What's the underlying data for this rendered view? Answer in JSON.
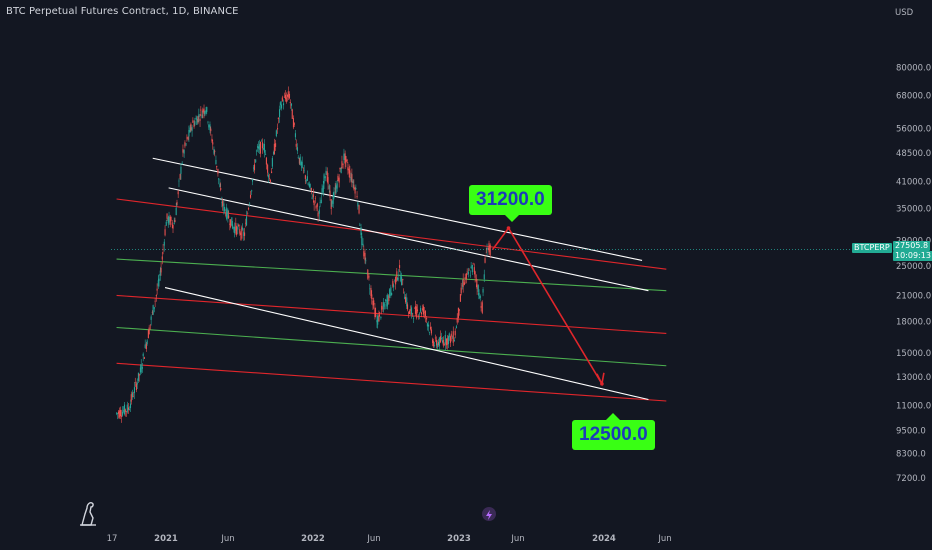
{
  "title": "BTC Perpetual Futures Contract, 1D, BINANCE",
  "currency": "USD",
  "symbol_tag": "BTCPERP",
  "last_price": "27505.8",
  "countdown": "10:09:13",
  "callouts": {
    "top": "31200.0",
    "bottom": "12500.0"
  },
  "colors": {
    "background": "#131722",
    "up": "#26a69a",
    "down": "#ef5350",
    "red_line": "#e0262b",
    "green_line": "#4caf50",
    "white_line": "#ffffff",
    "callout_bg": "#39ff14",
    "callout_text": "#1c3cb8"
  },
  "icons": [
    "dino-logo-icon",
    "lightning-icon"
  ],
  "chart_data": {
    "type": "candlestick",
    "title": "BTC Perpetual Futures Contract, 1D, BINANCE",
    "y_axis": {
      "unit": "USD",
      "scale": "log",
      "ticks": [
        "80000.0",
        "68000.0",
        "56000.0",
        "48500.0",
        "41000.0",
        "35000.0",
        "29000.0",
        "25000.0",
        "21000.0",
        "18000.0",
        "15000.0",
        "13000.0",
        "11000.0",
        "9500.0",
        "8300.0",
        "7200.0"
      ]
    },
    "x_axis": {
      "ticks": [
        "17",
        "2021",
        "Jun",
        "2022",
        "Jun",
        "2023",
        "Jun",
        "2024",
        "Jun"
      ]
    },
    "price_path": [
      [
        "2020-09-01",
        10500
      ],
      [
        "2020-10-01",
        10800
      ],
      [
        "2020-11-01",
        13500
      ],
      [
        "2020-12-01",
        19000
      ],
      [
        "2020-12-20",
        23500
      ],
      [
        "2021-01-05",
        33000
      ],
      [
        "2021-01-25",
        32000
      ],
      [
        "2021-02-15",
        48000
      ],
      [
        "2021-03-10",
        57000
      ],
      [
        "2021-04-14",
        63500
      ],
      [
        "2021-05-12",
        45000
      ],
      [
        "2021-05-25",
        36000
      ],
      [
        "2021-06-22",
        31500
      ],
      [
        "2021-07-20",
        30000
      ],
      [
        "2021-08-20",
        49000
      ],
      [
        "2021-09-07",
        51000
      ],
      [
        "2021-09-22",
        41000
      ],
      [
        "2021-10-20",
        65000
      ],
      [
        "2021-11-10",
        68000
      ],
      [
        "2021-12-04",
        47000
      ],
      [
        "2022-01-24",
        34000
      ],
      [
        "2022-02-10",
        44500
      ],
      [
        "2022-02-24",
        35500
      ],
      [
        "2022-03-28",
        47500
      ],
      [
        "2022-04-30",
        38000
      ],
      [
        "2022-05-12",
        28500
      ],
      [
        "2022-06-18",
        18000
      ],
      [
        "2022-07-15",
        20500
      ],
      [
        "2022-08-14",
        24400
      ],
      [
        "2022-09-07",
        18900
      ],
      [
        "2022-10-15",
        19300
      ],
      [
        "2022-11-09",
        15800
      ],
      [
        "2022-12-31",
        16500
      ],
      [
        "2023-01-20",
        22500
      ],
      [
        "2023-02-16",
        24900
      ],
      [
        "2023-03-10",
        19600
      ],
      [
        "2023-03-20",
        27800
      ],
      [
        "2023-03-30",
        27505.8
      ]
    ],
    "projection": [
      [
        "2023-04-05",
        27505.8
      ],
      [
        "2023-05-15",
        31200
      ],
      [
        "2024-01-05",
        12500
      ]
    ],
    "lines": [
      {
        "color": "red",
        "points": [
          [
            "2020-09-01",
            37000
          ],
          [
            "2024-06-15",
            24500
          ]
        ]
      },
      {
        "color": "red",
        "points": [
          [
            "2020-09-01",
            21000
          ],
          [
            "2024-06-15",
            16800
          ]
        ]
      },
      {
        "color": "red",
        "points": [
          [
            "2020-09-01",
            14100
          ],
          [
            "2024-06-15",
            11300
          ]
        ]
      },
      {
        "color": "green",
        "points": [
          [
            "2020-09-01",
            26000
          ],
          [
            "2024-06-15",
            21600
          ]
        ]
      },
      {
        "color": "green",
        "points": [
          [
            "2020-09-01",
            17400
          ],
          [
            "2024-06-15",
            13900
          ]
        ]
      },
      {
        "color": "white",
        "points": [
          [
            "2020-12-01",
            47000
          ],
          [
            "2024-04-15",
            25800
          ]
        ]
      },
      {
        "color": "white",
        "points": [
          [
            "2021-01-10",
            39500
          ],
          [
            "2024-05-01",
            21600
          ]
        ]
      },
      {
        "color": "white",
        "points": [
          [
            "2021-01-01",
            22000
          ],
          [
            "2024-05-01",
            11400
          ]
        ]
      }
    ],
    "annotations": [
      "31200.0",
      "12500.0"
    ]
  }
}
